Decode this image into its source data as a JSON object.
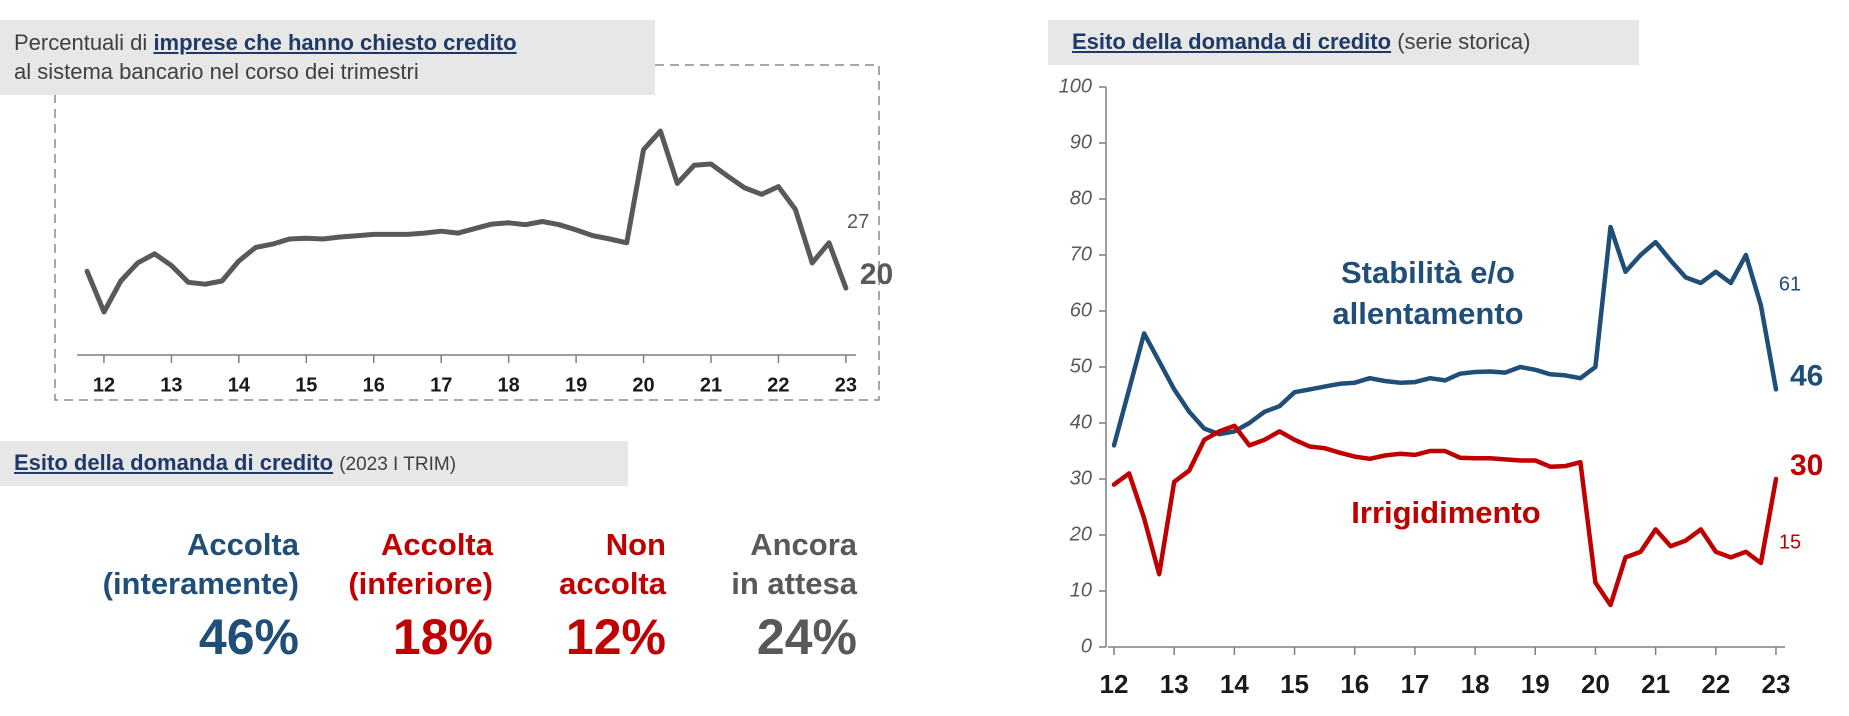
{
  "chart_data": [
    {
      "type": "line",
      "title_prefix": "Percentuali di",
      "title_emphasis": "imprese che hanno chiesto credito",
      "title_line2": "al sistema bancario nel corso dei trimestri",
      "x": [
        2011.75,
        2012,
        2012.25,
        2012.5,
        2012.75,
        2013,
        2013.25,
        2013.5,
        2013.75,
        2014,
        2014.25,
        2014.5,
        2014.75,
        2015,
        2015.25,
        2015.5,
        2015.75,
        2016,
        2016.25,
        2016.5,
        2016.75,
        2017,
        2017.25,
        2017.5,
        2017.75,
        2018,
        2018.25,
        2018.5,
        2018.75,
        2019,
        2019.25,
        2019.5,
        2019.75,
        2020,
        2020.25,
        2020.5,
        2020.75,
        2021,
        2021.25,
        2021.5,
        2021.75,
        2022,
        2022.25,
        2022.5,
        2022.75,
        2023
      ],
      "values": [
        22.6,
        16.3,
        21.1,
        23.9,
        25.3,
        23.5,
        20.9,
        20.6,
        21.1,
        24.2,
        26.3,
        26.8,
        27.6,
        27.7,
        27.6,
        27.9,
        28.1,
        28.3,
        28.3,
        28.3,
        28.5,
        28.8,
        28.5,
        29.2,
        29.9,
        30.1,
        29.8,
        30.3,
        29.8,
        29.0,
        28.1,
        27.6,
        27.0,
        41.4,
        44.3,
        36.2,
        39.0,
        39.2,
        37.3,
        35.5,
        34.5,
        35.7,
        32.2,
        23.9,
        27,
        20
      ],
      "value_labels": [
        null,
        null,
        null,
        null,
        null,
        null,
        null,
        null,
        null,
        null,
        null,
        null,
        null,
        null,
        null,
        null,
        null,
        null,
        null,
        null,
        null,
        null,
        null,
        null,
        null,
        null,
        null,
        null,
        null,
        null,
        null,
        null,
        null,
        null,
        null,
        null,
        null,
        null,
        null,
        null,
        null,
        null,
        null,
        null,
        "27",
        "20"
      ],
      "color": "#595959",
      "xlim": [
        2011.6,
        2023.15
      ],
      "xticks": [
        {
          "value": 2012,
          "label": "12"
        },
        {
          "value": 2013,
          "label": "13"
        },
        {
          "value": 2014,
          "label": "14"
        },
        {
          "value": 2015,
          "label": "15"
        },
        {
          "value": 2016,
          "label": "16"
        },
        {
          "value": 2017,
          "label": "17"
        },
        {
          "value": 2018,
          "label": "18"
        },
        {
          "value": 2019,
          "label": "19"
        },
        {
          "value": 2020,
          "label": "20"
        },
        {
          "value": 2021,
          "label": "21"
        },
        {
          "value": 2022,
          "label": "22"
        },
        {
          "value": 2023,
          "label": "23"
        }
      ]
    },
    {
      "type": "line",
      "title": "Esito della domanda di credito",
      "subtitle": "(serie storica)",
      "x": [
        2012,
        2012.25,
        2012.5,
        2012.75,
        2013,
        2013.25,
        2013.5,
        2013.75,
        2014,
        2014.25,
        2014.5,
        2014.75,
        2015,
        2015.25,
        2015.5,
        2015.75,
        2016,
        2016.25,
        2016.5,
        2016.75,
        2017,
        2017.25,
        2017.5,
        2017.75,
        2018,
        2018.25,
        2018.5,
        2018.75,
        2019,
        2019.25,
        2019.5,
        2019.75,
        2020,
        2020.25,
        2020.5,
        2020.75,
        2021,
        2021.25,
        2021.5,
        2021.75,
        2022,
        2022.25,
        2022.5,
        2022.75,
        2023
      ],
      "series": [
        {
          "name": "Stabilità e/o allentamento",
          "color": "#1f4e79",
          "values": [
            36,
            46,
            56,
            51,
            46,
            42,
            39,
            38,
            38.5,
            40,
            42,
            43,
            45.5,
            46,
            46.5,
            47,
            47.2,
            48,
            47.5,
            47.2,
            47.3,
            48,
            47.6,
            48.8,
            49.1,
            49.2,
            49,
            50,
            49.5,
            48.7,
            48.5,
            48,
            50,
            75,
            67,
            70,
            72.3,
            69,
            66,
            65,
            67,
            65,
            70,
            61,
            46
          ],
          "value_labels": [
            null,
            null,
            null,
            null,
            null,
            null,
            null,
            null,
            null,
            null,
            null,
            null,
            null,
            null,
            null,
            null,
            null,
            null,
            null,
            null,
            null,
            null,
            null,
            null,
            null,
            null,
            null,
            null,
            null,
            null,
            null,
            null,
            null,
            null,
            null,
            null,
            null,
            null,
            null,
            null,
            null,
            null,
            null,
            "61",
            "46"
          ]
        },
        {
          "name": "Irrigidimento",
          "color": "#c00000",
          "values": [
            29,
            31,
            23,
            13,
            29.5,
            31.5,
            37,
            38.5,
            39.5,
            36,
            37,
            38.5,
            37,
            35.8,
            35.5,
            34.7,
            34,
            33.6,
            34.2,
            34.5,
            34.3,
            35,
            35,
            33.8,
            33.7,
            33.7,
            33.5,
            33.3,
            33.3,
            32.2,
            32.3,
            33,
            11.5,
            7.5,
            16,
            17,
            21,
            18,
            19,
            21,
            17,
            16,
            17,
            15,
            30
          ],
          "value_labels": [
            null,
            null,
            null,
            null,
            null,
            null,
            null,
            null,
            null,
            null,
            null,
            null,
            null,
            null,
            null,
            null,
            null,
            null,
            null,
            null,
            null,
            null,
            null,
            null,
            null,
            null,
            null,
            null,
            null,
            null,
            null,
            null,
            null,
            null,
            null,
            null,
            null,
            null,
            null,
            null,
            null,
            null,
            null,
            "15",
            "30"
          ]
        }
      ],
      "xlim": [
        2011.9,
        2023.15
      ],
      "xticks": [
        {
          "value": 2012,
          "label": "12"
        },
        {
          "value": 2013,
          "label": "13"
        },
        {
          "value": 2014,
          "label": "14"
        },
        {
          "value": 2015,
          "label": "15"
        },
        {
          "value": 2016,
          "label": "16"
        },
        {
          "value": 2017,
          "label": "17"
        },
        {
          "value": 2018,
          "label": "18"
        },
        {
          "value": 2019,
          "label": "19"
        },
        {
          "value": 2020,
          "label": "20"
        },
        {
          "value": 2021,
          "label": "21"
        },
        {
          "value": 2022,
          "label": "22"
        },
        {
          "value": 2023,
          "label": "23"
        }
      ],
      "ylim": [
        0,
        100
      ],
      "yticks": [
        0,
        10,
        20,
        30,
        40,
        50,
        60,
        70,
        80,
        90,
        100
      ]
    }
  ],
  "outcome_panel": {
    "title": "Esito della domanda di credito",
    "subtitle": "(2023 I TRIM)",
    "items": [
      {
        "line1": "Accolta",
        "line2": "(interamente)",
        "value": "46%",
        "color": "#1f4e79"
      },
      {
        "line1": "Accolta",
        "line2": "(inferiore)",
        "value": "18%",
        "color": "#c00000"
      },
      {
        "line1": "Non",
        "line2": "accolta",
        "value": "12%",
        "color": "#c00000"
      },
      {
        "line1": "Ancora",
        "line2": "in attesa",
        "value": "24%",
        "color": "#595959"
      }
    ]
  }
}
